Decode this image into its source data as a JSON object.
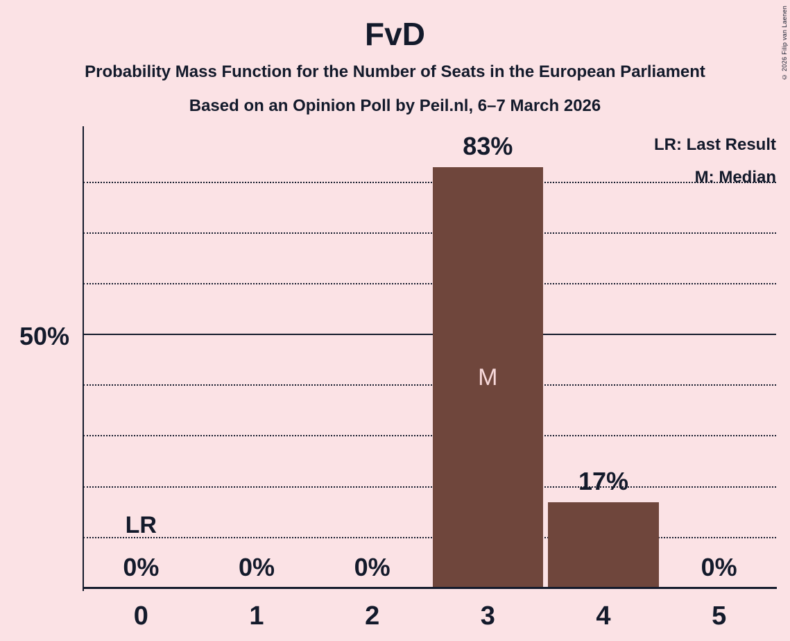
{
  "header": {
    "title": "FvD",
    "subtitle1": "Probability Mass Function for the Number of Seats in the European Parliament",
    "subtitle2": "Based on an Opinion Poll by Peil.nl, 6–7 March 2026"
  },
  "legend": {
    "lr_line": "LR: Last Result",
    "m_line": "M: Median"
  },
  "y_axis": {
    "label": "50%"
  },
  "copyright": "© 2026 Filip van Laenen",
  "chart_data": {
    "type": "bar",
    "title": "FvD",
    "subtitle": "Probability Mass Function for the Number of Seats in the European Parliament",
    "source": "Based on an Opinion Poll by Peil.nl, 6–7 March 2026",
    "categories": [
      "0",
      "1",
      "2",
      "3",
      "4",
      "5"
    ],
    "values": [
      0,
      0,
      0,
      83,
      17,
      0
    ],
    "value_labels": [
      "0%",
      "0%",
      "0%",
      "83%",
      "17%",
      "0%"
    ],
    "xlabel": "",
    "ylabel": "",
    "ylim": [
      0,
      91
    ],
    "y_tick_labels": [
      "50%"
    ],
    "gridlines_pct": [
      10,
      20,
      30,
      40,
      50,
      60,
      70,
      80
    ],
    "solid_gridline_pct": 50,
    "grid": "dotted horizontal",
    "legend_position": "top-right",
    "median_seat_index": 3,
    "median_marker": "M",
    "last_result_seat_index": 0,
    "last_result_marker": "LR",
    "colors": {
      "background": "#fbe2e5",
      "bar": "#6f463c",
      "text": "#131a2b",
      "median_marker_text": "#f7d8da"
    }
  }
}
